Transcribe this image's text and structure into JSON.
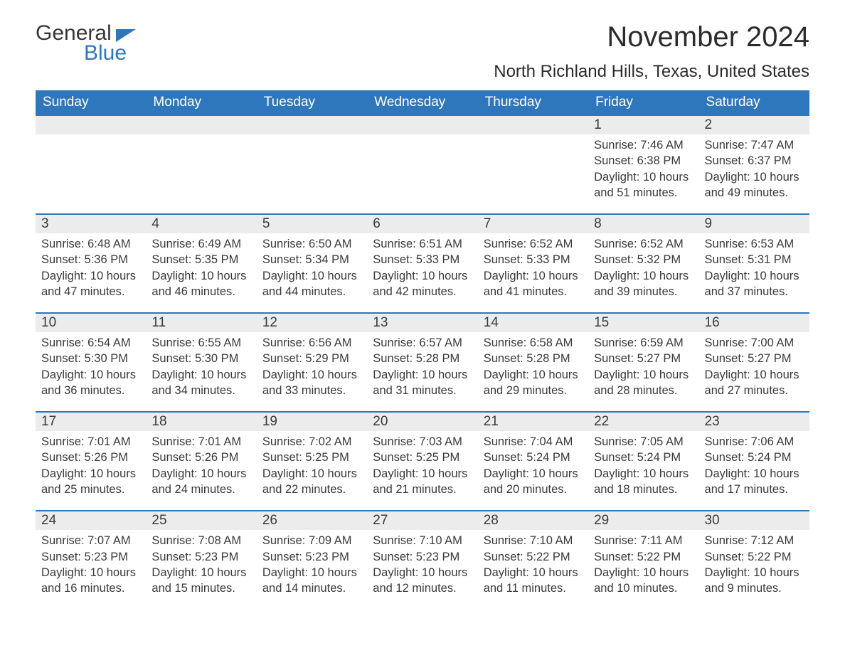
{
  "logo": {
    "word1": "General",
    "word2": "Blue"
  },
  "title": "November 2024",
  "location": "North Richland Hills, Texas, United States",
  "colors": {
    "brand_blue": "#2f77bc",
    "header_text": "#ffffff",
    "daynum_bg": "#ececec",
    "body_text": "#3a3a3a",
    "page_bg": "#ffffff"
  },
  "typography": {
    "title_fontsize": 40,
    "location_fontsize": 24,
    "weekday_fontsize": 19,
    "daynum_fontsize": 19,
    "detail_fontsize": 16.5,
    "font_family": "Arial"
  },
  "calendar": {
    "type": "table",
    "columns": [
      "Sunday",
      "Monday",
      "Tuesday",
      "Wednesday",
      "Thursday",
      "Friday",
      "Saturday"
    ],
    "weeks": [
      [
        null,
        null,
        null,
        null,
        null,
        {
          "day": "1",
          "sunrise": "Sunrise: 7:46 AM",
          "sunset": "Sunset: 6:38 PM",
          "daylight": "Daylight: 10 hours and 51 minutes."
        },
        {
          "day": "2",
          "sunrise": "Sunrise: 7:47 AM",
          "sunset": "Sunset: 6:37 PM",
          "daylight": "Daylight: 10 hours and 49 minutes."
        }
      ],
      [
        {
          "day": "3",
          "sunrise": "Sunrise: 6:48 AM",
          "sunset": "Sunset: 5:36 PM",
          "daylight": "Daylight: 10 hours and 47 minutes."
        },
        {
          "day": "4",
          "sunrise": "Sunrise: 6:49 AM",
          "sunset": "Sunset: 5:35 PM",
          "daylight": "Daylight: 10 hours and 46 minutes."
        },
        {
          "day": "5",
          "sunrise": "Sunrise: 6:50 AM",
          "sunset": "Sunset: 5:34 PM",
          "daylight": "Daylight: 10 hours and 44 minutes."
        },
        {
          "day": "6",
          "sunrise": "Sunrise: 6:51 AM",
          "sunset": "Sunset: 5:33 PM",
          "daylight": "Daylight: 10 hours and 42 minutes."
        },
        {
          "day": "7",
          "sunrise": "Sunrise: 6:52 AM",
          "sunset": "Sunset: 5:33 PM",
          "daylight": "Daylight: 10 hours and 41 minutes."
        },
        {
          "day": "8",
          "sunrise": "Sunrise: 6:52 AM",
          "sunset": "Sunset: 5:32 PM",
          "daylight": "Daylight: 10 hours and 39 minutes."
        },
        {
          "day": "9",
          "sunrise": "Sunrise: 6:53 AM",
          "sunset": "Sunset: 5:31 PM",
          "daylight": "Daylight: 10 hours and 37 minutes."
        }
      ],
      [
        {
          "day": "10",
          "sunrise": "Sunrise: 6:54 AM",
          "sunset": "Sunset: 5:30 PM",
          "daylight": "Daylight: 10 hours and 36 minutes."
        },
        {
          "day": "11",
          "sunrise": "Sunrise: 6:55 AM",
          "sunset": "Sunset: 5:30 PM",
          "daylight": "Daylight: 10 hours and 34 minutes."
        },
        {
          "day": "12",
          "sunrise": "Sunrise: 6:56 AM",
          "sunset": "Sunset: 5:29 PM",
          "daylight": "Daylight: 10 hours and 33 minutes."
        },
        {
          "day": "13",
          "sunrise": "Sunrise: 6:57 AM",
          "sunset": "Sunset: 5:28 PM",
          "daylight": "Daylight: 10 hours and 31 minutes."
        },
        {
          "day": "14",
          "sunrise": "Sunrise: 6:58 AM",
          "sunset": "Sunset: 5:28 PM",
          "daylight": "Daylight: 10 hours and 29 minutes."
        },
        {
          "day": "15",
          "sunrise": "Sunrise: 6:59 AM",
          "sunset": "Sunset: 5:27 PM",
          "daylight": "Daylight: 10 hours and 28 minutes."
        },
        {
          "day": "16",
          "sunrise": "Sunrise: 7:00 AM",
          "sunset": "Sunset: 5:27 PM",
          "daylight": "Daylight: 10 hours and 27 minutes."
        }
      ],
      [
        {
          "day": "17",
          "sunrise": "Sunrise: 7:01 AM",
          "sunset": "Sunset: 5:26 PM",
          "daylight": "Daylight: 10 hours and 25 minutes."
        },
        {
          "day": "18",
          "sunrise": "Sunrise: 7:01 AM",
          "sunset": "Sunset: 5:26 PM",
          "daylight": "Daylight: 10 hours and 24 minutes."
        },
        {
          "day": "19",
          "sunrise": "Sunrise: 7:02 AM",
          "sunset": "Sunset: 5:25 PM",
          "daylight": "Daylight: 10 hours and 22 minutes."
        },
        {
          "day": "20",
          "sunrise": "Sunrise: 7:03 AM",
          "sunset": "Sunset: 5:25 PM",
          "daylight": "Daylight: 10 hours and 21 minutes."
        },
        {
          "day": "21",
          "sunrise": "Sunrise: 7:04 AM",
          "sunset": "Sunset: 5:24 PM",
          "daylight": "Daylight: 10 hours and 20 minutes."
        },
        {
          "day": "22",
          "sunrise": "Sunrise: 7:05 AM",
          "sunset": "Sunset: 5:24 PM",
          "daylight": "Daylight: 10 hours and 18 minutes."
        },
        {
          "day": "23",
          "sunrise": "Sunrise: 7:06 AM",
          "sunset": "Sunset: 5:24 PM",
          "daylight": "Daylight: 10 hours and 17 minutes."
        }
      ],
      [
        {
          "day": "24",
          "sunrise": "Sunrise: 7:07 AM",
          "sunset": "Sunset: 5:23 PM",
          "daylight": "Daylight: 10 hours and 16 minutes."
        },
        {
          "day": "25",
          "sunrise": "Sunrise: 7:08 AM",
          "sunset": "Sunset: 5:23 PM",
          "daylight": "Daylight: 10 hours and 15 minutes."
        },
        {
          "day": "26",
          "sunrise": "Sunrise: 7:09 AM",
          "sunset": "Sunset: 5:23 PM",
          "daylight": "Daylight: 10 hours and 14 minutes."
        },
        {
          "day": "27",
          "sunrise": "Sunrise: 7:10 AM",
          "sunset": "Sunset: 5:23 PM",
          "daylight": "Daylight: 10 hours and 12 minutes."
        },
        {
          "day": "28",
          "sunrise": "Sunrise: 7:10 AM",
          "sunset": "Sunset: 5:22 PM",
          "daylight": "Daylight: 10 hours and 11 minutes."
        },
        {
          "day": "29",
          "sunrise": "Sunrise: 7:11 AM",
          "sunset": "Sunset: 5:22 PM",
          "daylight": "Daylight: 10 hours and 10 minutes."
        },
        {
          "day": "30",
          "sunrise": "Sunrise: 7:12 AM",
          "sunset": "Sunset: 5:22 PM",
          "daylight": "Daylight: 10 hours and 9 minutes."
        }
      ]
    ]
  }
}
